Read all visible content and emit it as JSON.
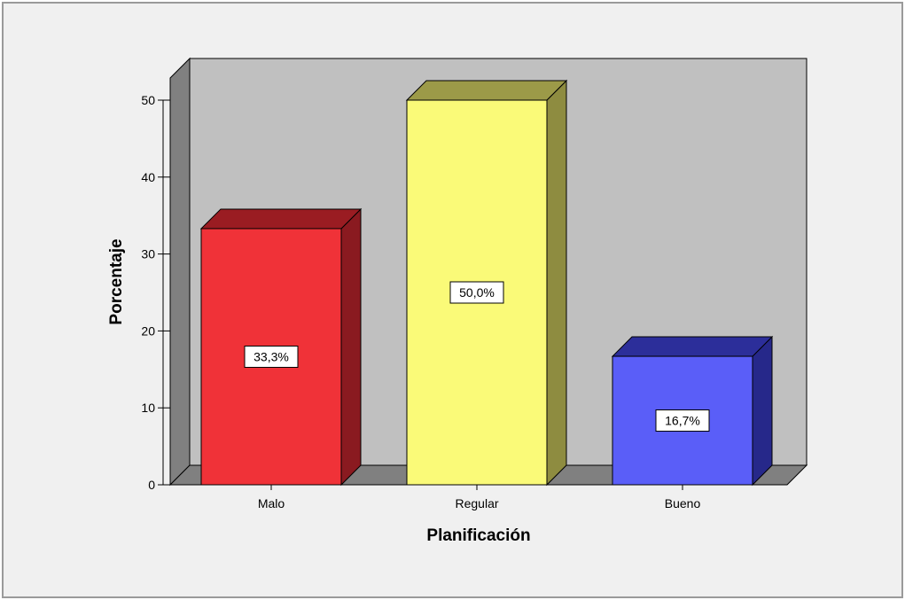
{
  "chart_data": {
    "type": "bar",
    "title": "",
    "xlabel": "Planificación",
    "ylabel": "Porcentaje",
    "categories": [
      "Malo",
      "Regular",
      "Bueno"
    ],
    "values": [
      33.3,
      50.0,
      16.7
    ],
    "data_labels": [
      "33,3%",
      "50,0%",
      "16,7%"
    ],
    "ylim": [
      0,
      50
    ],
    "yticks": [
      0,
      10,
      20,
      30,
      40,
      50
    ],
    "ytick_labels": [
      "0",
      "10",
      "20",
      "30",
      "40",
      "50"
    ],
    "grid": false,
    "legend": "none",
    "style": "3d",
    "colors": {
      "bars": [
        {
          "front": "#f03238",
          "top": "#9a1c22",
          "side": "#8a1a20"
        },
        {
          "front": "#fafa78",
          "top": "#9c9a48",
          "side": "#8e8c40"
        },
        {
          "front": "#5a5ef8",
          "top": "#2c2e9a",
          "side": "#26288a"
        }
      ],
      "wall_back": "#c0c0c0",
      "wall_side": "#808080",
      "floor": "#808080",
      "page_bg": "#f0f0f0"
    }
  }
}
